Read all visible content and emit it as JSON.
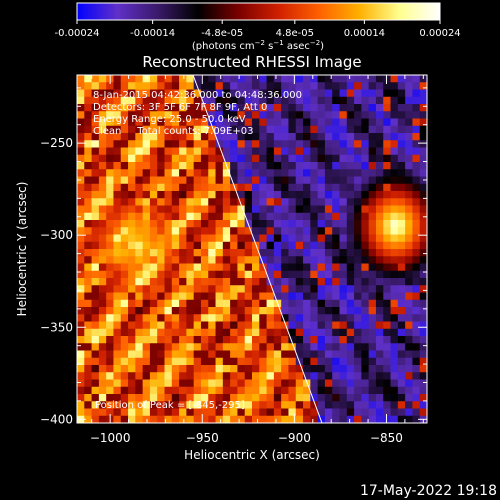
{
  "colorbar": {
    "ticks": [
      "-0.00024",
      "-0.00014",
      "-4.8e-05",
      "4.8e-05",
      "0.00014",
      "0.00024"
    ],
    "values": [
      -0.00024,
      -0.00014,
      -4.8e-05,
      4.8e-05,
      0.00014,
      0.00024
    ],
    "range": [
      -0.00024,
      0.00024
    ],
    "units_label": "(photons cm-2 s-1 asec-2)"
  },
  "chart_data": {
    "type": "heatmap",
    "title": "Reconstructed RHESSI Image",
    "xlabel": "Heliocentric X (arcsec)",
    "ylabel": "Heliocentric Y (arcsec)",
    "xlim": [
      -1018,
      -828
    ],
    "ylim": [
      -402,
      -213
    ],
    "x_ticks": [
      -1000,
      -950,
      -900,
      -850
    ],
    "y_ticks": [
      -250,
      -300,
      -350,
      -400
    ],
    "x_tick_labels": [
      "−1000",
      "−950",
      "−900",
      "−850"
    ],
    "y_tick_labels": [
      "−250",
      "−300",
      "−350",
      "−400"
    ],
    "peak": {
      "x": -845,
      "y": -295
    },
    "limb_line": [
      [
        -955,
        -213
      ],
      [
        -885,
        -402
      ]
    ],
    "annotations": [
      "8-Jan-2015 04:42:36.000 to 04:48:36.000",
      "Detectors: 3F 5F 6F 7F 8F 9F, Att 0",
      "Energy Range: 25.0 - 50.0 keV",
      "Clean     Total counts: 7.09E+03"
    ],
    "peak_label": "Position of Peak = [-845,-295]",
    "colormap": [
      "#0000ff",
      "#6030c8",
      "#3a1a6a",
      "#000000",
      "#7a0000",
      "#d02000",
      "#ff6000",
      "#ffb000",
      "#ffff90",
      "#ffffff"
    ]
  },
  "footer": {
    "date": "17-May-2022 19:18"
  }
}
